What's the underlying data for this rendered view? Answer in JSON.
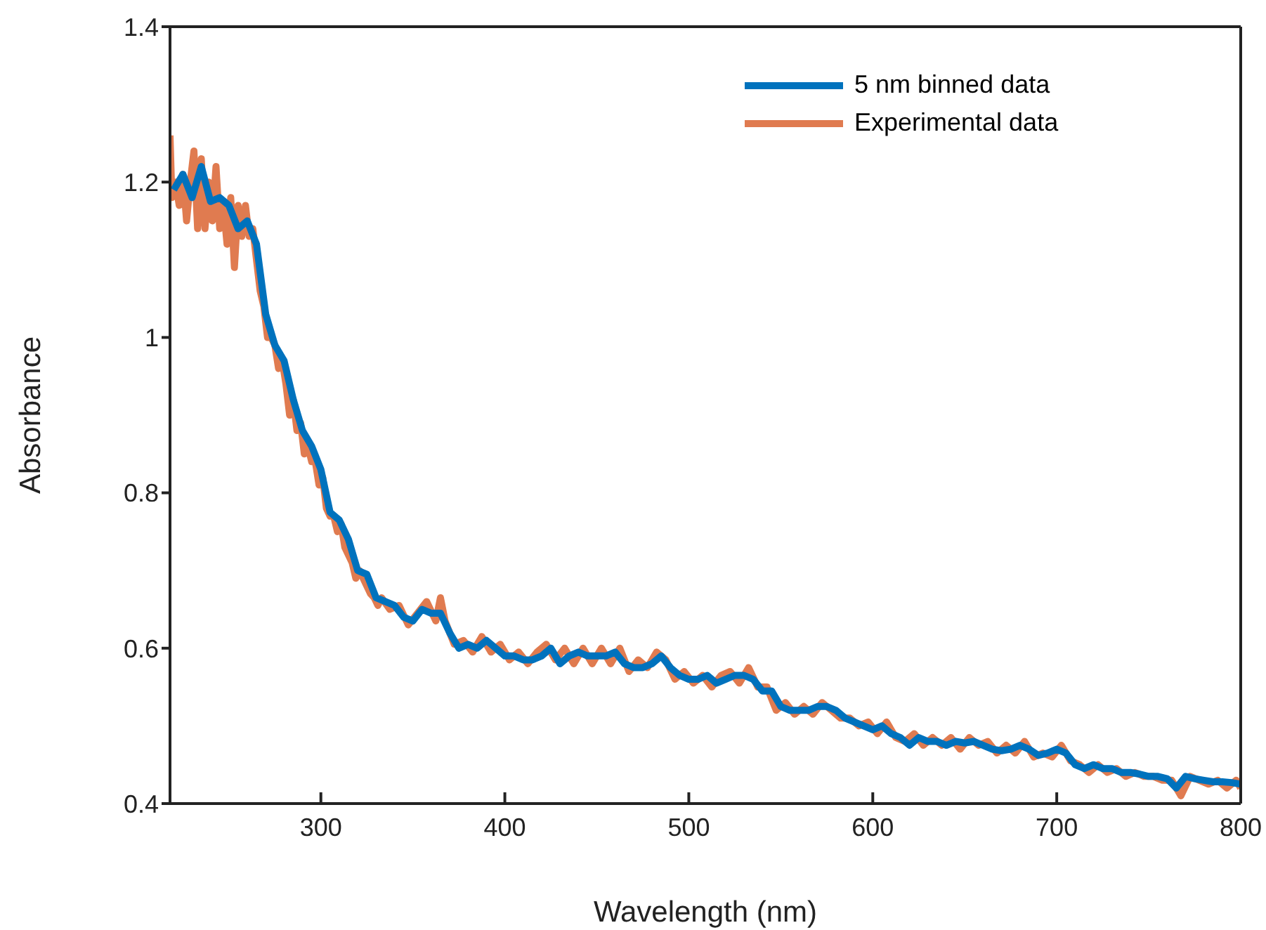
{
  "chart_data": {
    "type": "line",
    "xlabel": "Wavelength (nm)",
    "ylabel": "Absorbance",
    "xlim": [
      218,
      800
    ],
    "xticks": [
      300,
      400,
      500,
      600,
      700,
      800
    ],
    "ylim": [
      0.4,
      1.4
    ],
    "yticks": [
      0.4,
      0.6,
      0.8,
      1,
      1.2,
      1.4
    ],
    "legend": "top right",
    "grid": false,
    "series": [
      {
        "name": "5 nm binned data",
        "color": "#0072bd",
        "x": [
          220,
          225,
          230,
          235,
          240,
          245,
          250,
          255,
          260,
          265,
          270,
          275,
          280,
          285,
          290,
          295,
          300,
          305,
          310,
          315,
          320,
          325,
          330,
          335,
          340,
          345,
          350,
          355,
          360,
          365,
          370,
          375,
          380,
          385,
          390,
          395,
          400,
          405,
          410,
          415,
          420,
          425,
          430,
          435,
          440,
          445,
          450,
          455,
          460,
          465,
          470,
          475,
          480,
          485,
          490,
          495,
          500,
          505,
          510,
          515,
          520,
          525,
          530,
          535,
          540,
          545,
          550,
          555,
          560,
          565,
          570,
          575,
          580,
          585,
          590,
          595,
          600,
          605,
          610,
          615,
          620,
          625,
          630,
          635,
          640,
          645,
          650,
          655,
          660,
          665,
          670,
          675,
          680,
          685,
          690,
          695,
          700,
          705,
          710,
          715,
          720,
          725,
          730,
          735,
          740,
          745,
          750,
          755,
          760,
          765,
          770,
          775,
          780,
          785,
          790,
          795,
          800
        ],
        "values": [
          1.19,
          1.21,
          1.18,
          1.22,
          1.175,
          1.18,
          1.17,
          1.14,
          1.15,
          1.12,
          1.03,
          0.99,
          0.97,
          0.92,
          0.88,
          0.86,
          0.83,
          0.775,
          0.765,
          0.74,
          0.7,
          0.695,
          0.665,
          0.66,
          0.655,
          0.64,
          0.635,
          0.65,
          0.645,
          0.645,
          0.62,
          0.6,
          0.605,
          0.6,
          0.61,
          0.6,
          0.59,
          0.59,
          0.585,
          0.585,
          0.59,
          0.6,
          0.58,
          0.59,
          0.595,
          0.59,
          0.59,
          0.59,
          0.595,
          0.58,
          0.575,
          0.575,
          0.58,
          0.59,
          0.575,
          0.565,
          0.56,
          0.56,
          0.565,
          0.555,
          0.56,
          0.565,
          0.565,
          0.56,
          0.545,
          0.545,
          0.525,
          0.52,
          0.52,
          0.52,
          0.525,
          0.525,
          0.52,
          0.51,
          0.505,
          0.5,
          0.495,
          0.5,
          0.49,
          0.485,
          0.475,
          0.485,
          0.48,
          0.48,
          0.475,
          0.48,
          0.478,
          0.48,
          0.475,
          0.47,
          0.468,
          0.47,
          0.475,
          0.47,
          0.462,
          0.465,
          0.47,
          0.465,
          0.45,
          0.445,
          0.45,
          0.445,
          0.445,
          0.44,
          0.44,
          0.438,
          0.435,
          0.435,
          0.432,
          0.42,
          0.435,
          0.432,
          0.43,
          0.428,
          0.428,
          0.427,
          0.425
        ]
      },
      {
        "name": "Experimental data",
        "color": "#e07b50",
        "x": [
          218,
          219,
          221,
          223,
          225,
          227,
          229,
          231,
          233,
          235,
          237,
          239,
          241,
          243,
          245,
          247,
          249,
          251,
          253,
          255,
          257,
          259,
          261,
          263,
          265,
          267,
          269,
          271,
          273,
          275,
          277,
          279,
          281,
          283,
          285,
          287,
          289,
          291,
          293,
          295,
          297,
          299,
          301,
          303,
          305,
          307,
          309,
          311,
          313,
          315,
          317,
          319,
          321,
          323,
          325,
          327,
          329,
          331,
          333,
          337.5,
          342.5,
          347.5,
          352.5,
          357.5,
          362.5,
          365,
          367.5,
          372.5,
          377.5,
          382.5,
          387.5,
          392.5,
          397.5,
          402.5,
          407.5,
          412.5,
          417.5,
          422.5,
          427.5,
          432.5,
          437.5,
          442.5,
          447.5,
          452.5,
          457.5,
          462.5,
          467.5,
          472.5,
          477.5,
          482.5,
          487.5,
          492.5,
          497.5,
          502.5,
          507.5,
          512.5,
          517.5,
          522.5,
          527.5,
          532.5,
          537.5,
          542.5,
          547.5,
          552.5,
          557.5,
          562.5,
          567.5,
          572.5,
          577.5,
          582.5,
          587.5,
          592.5,
          597.5,
          602.5,
          607.5,
          612.5,
          617.5,
          622.5,
          627.5,
          632.5,
          637.5,
          642.5,
          647.5,
          652.5,
          657.5,
          662.5,
          667.5,
          672.5,
          677.5,
          682.5,
          687.5,
          692.5,
          697.5,
          702.5,
          707.5,
          712.5,
          717.5,
          722.5,
          727.5,
          732.5,
          737.5,
          742.5,
          747.5,
          752.5,
          757.5,
          762.5,
          767.5,
          772.5,
          777.5,
          782.5,
          787.5,
          792.5,
          797.5,
          800
        ],
        "values": [
          1.26,
          1.18,
          1.2,
          1.17,
          1.21,
          1.15,
          1.2,
          1.24,
          1.14,
          1.23,
          1.14,
          1.2,
          1.15,
          1.22,
          1.14,
          1.17,
          1.12,
          1.18,
          1.09,
          1.17,
          1.13,
          1.17,
          1.13,
          1.14,
          1.1,
          1.06,
          1.04,
          1,
          1,
          0.99,
          0.96,
          0.97,
          0.94,
          0.9,
          0.92,
          0.88,
          0.89,
          0.85,
          0.86,
          0.84,
          0.84,
          0.81,
          0.82,
          0.78,
          0.77,
          0.77,
          0.75,
          0.76,
          0.73,
          0.72,
          0.71,
          0.69,
          0.7,
          0.69,
          0.68,
          0.67,
          0.665,
          0.655,
          0.665,
          0.65,
          0.655,
          0.63,
          0.645,
          0.66,
          0.635,
          0.665,
          0.635,
          0.605,
          0.61,
          0.595,
          0.615,
          0.595,
          0.605,
          0.585,
          0.595,
          0.58,
          0.595,
          0.605,
          0.585,
          0.6,
          0.58,
          0.6,
          0.58,
          0.6,
          0.58,
          0.6,
          0.57,
          0.585,
          0.575,
          0.595,
          0.585,
          0.56,
          0.57,
          0.555,
          0.565,
          0.55,
          0.565,
          0.57,
          0.555,
          0.575,
          0.55,
          0.55,
          0.52,
          0.53,
          0.515,
          0.525,
          0.515,
          0.53,
          0.52,
          0.51,
          0.51,
          0.5,
          0.505,
          0.49,
          0.505,
          0.485,
          0.48,
          0.49,
          0.475,
          0.485,
          0.475,
          0.485,
          0.47,
          0.485,
          0.475,
          0.48,
          0.465,
          0.475,
          0.465,
          0.48,
          0.46,
          0.465,
          0.46,
          0.475,
          0.455,
          0.45,
          0.44,
          0.45,
          0.44,
          0.445,
          0.435,
          0.44,
          0.435,
          0.435,
          0.43,
          0.43,
          0.41,
          0.435,
          0.43,
          0.425,
          0.43,
          0.42,
          0.43,
          0.42
        ]
      }
    ]
  }
}
